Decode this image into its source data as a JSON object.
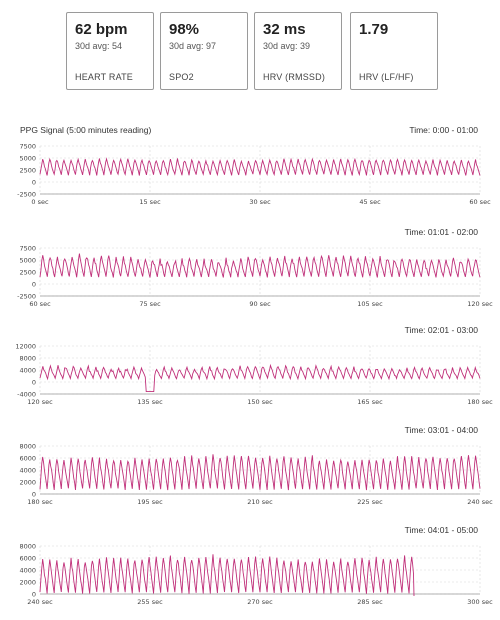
{
  "metrics": [
    {
      "value": "62 bpm",
      "avg": "30d avg: 54",
      "label": "HEART RATE"
    },
    {
      "value": "98%",
      "avg": "30d avg: 97",
      "label": "SPO2"
    },
    {
      "value": "32 ms",
      "avg": "30d avg: 39",
      "label": "HRV (RMSSD)"
    },
    {
      "value": "1.79",
      "avg": "",
      "label": "HRV (LF/HF)"
    }
  ],
  "signal_title": "PPG Signal (5:00 minutes reading)",
  "colors": {
    "signal": "#c0307a",
    "grid": "#d8d8d8",
    "axis": "#999999",
    "card_border": "#9a9a9a"
  },
  "chart_data": [
    {
      "type": "line",
      "time_label": "Time: 0:00 - 01:00",
      "x_ticks": [
        "0 sec",
        "15 sec",
        "30 sec",
        "45 sec",
        "60 sec"
      ],
      "xlim": [
        0,
        60
      ],
      "y_ticks": [
        "7500",
        "5000",
        "2500",
        "0",
        "-2500"
      ],
      "ylim": [
        -2500,
        7500
      ],
      "baseline": 1500,
      "amplitude": [
        3000,
        3800
      ],
      "cycles": 62
    },
    {
      "type": "line",
      "time_label": "Time: 01:01 - 02:00",
      "x_ticks": [
        "60 sec",
        "75 sec",
        "90 sec",
        "105 sec",
        "120 sec"
      ],
      "xlim": [
        60,
        120
      ],
      "y_ticks": [
        "7500",
        "5000",
        "2500",
        "0",
        "-2500"
      ],
      "ylim": [
        -2500,
        7500
      ],
      "baseline": 1500,
      "amplitude": [
        3200,
        5200
      ],
      "cycles": 60
    },
    {
      "type": "line",
      "time_label": "Time: 02:01 - 03:00",
      "x_ticks": [
        "120 sec",
        "135 sec",
        "150 sec",
        "165 sec",
        "180 sec"
      ],
      "xlim": [
        120,
        180
      ],
      "y_ticks": [
        "12000",
        "8000",
        "4000",
        "0",
        "-4000"
      ],
      "ylim": [
        -4000,
        12000
      ],
      "baseline": 1200,
      "amplitude": [
        2800,
        5000
      ],
      "cycles": 58
    },
    {
      "type": "line",
      "time_label": "Time: 03:01 - 04:00",
      "x_ticks": [
        "180 sec",
        "195 sec",
        "210 sec",
        "225 sec",
        "240 sec"
      ],
      "xlim": [
        180,
        240
      ],
      "y_ticks": [
        "8000",
        "6000",
        "4000",
        "2000",
        "0"
      ],
      "ylim": [
        0,
        8000
      ],
      "baseline": 800,
      "amplitude": [
        5000,
        6500
      ],
      "cycles": 62
    },
    {
      "type": "line",
      "time_label": "Time: 04:01 - 05:00",
      "x_ticks": [
        "240 sec",
        "255 sec",
        "270 sec",
        "285 sec",
        "300 sec"
      ],
      "xlim": [
        240,
        300
      ],
      "y_ticks": [
        "8000",
        "6000",
        "4000",
        "2000",
        "0"
      ],
      "ylim": [
        0,
        8000
      ],
      "baseline": 200,
      "amplitude": [
        5500,
        7000
      ],
      "cycles": 62,
      "ends_at": 0.85
    }
  ]
}
